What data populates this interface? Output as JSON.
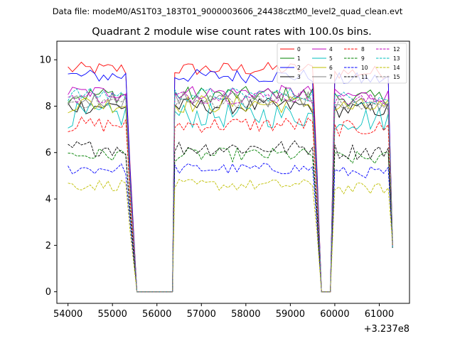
{
  "chart_data": {
    "type": "line",
    "suptitle": "Data file: modeM0/AS1T03_183T01_9000003606_24438cztM0_level2_quad_clean.evt",
    "title": "Quadrant 2 module wise count rates with 100.0s bins.",
    "xlabel": "",
    "ylabel": "",
    "x_offset_label": "+3.237e8",
    "xlim": [
      53750,
      61680
    ],
    "ylim": [
      -0.5,
      10.8
    ],
    "x_ticks": [
      54000,
      55000,
      56000,
      57000,
      58000,
      59000,
      60000,
      61000
    ],
    "x_tick_labels": [
      "54000",
      "55000",
      "56000",
      "57000",
      "58000",
      "59000",
      "60000",
      "61000"
    ],
    "y_ticks": [
      0,
      2,
      4,
      6,
      8,
      10
    ],
    "y_tick_labels": [
      "0",
      "2",
      "4",
      "6",
      "8",
      "10"
    ],
    "grid": false,
    "legend_position": "top-right",
    "segments": [
      {
        "start": 54000,
        "end": 55400
      },
      {
        "start": 56400,
        "end": 59600
      },
      {
        "start": 60000,
        "end": 61300
      }
    ],
    "series": [
      {
        "name": "0",
        "color": "#ff0000",
        "dash": "solid",
        "mean": 9.6,
        "amp": 0.3
      },
      {
        "name": "1",
        "color": "#008000",
        "dash": "solid",
        "mean": 8.5,
        "amp": 0.35
      },
      {
        "name": "2",
        "color": "#0000ff",
        "dash": "solid",
        "mean": 9.3,
        "amp": 0.3
      },
      {
        "name": "3",
        "color": "#000000",
        "dash": "solid",
        "mean": 8.0,
        "amp": 0.35
      },
      {
        "name": "4",
        "color": "#bf00bf",
        "dash": "solid",
        "mean": 8.6,
        "amp": 0.3
      },
      {
        "name": "5",
        "color": "#00bfbf",
        "dash": "solid",
        "mean": 7.6,
        "amp": 0.55
      },
      {
        "name": "6",
        "color": "#bfbf00",
        "dash": "solid",
        "mean": 8.1,
        "amp": 0.4
      },
      {
        "name": "7",
        "color": "#808080",
        "dash": "solid",
        "mean": 8.3,
        "amp": 0.35
      },
      {
        "name": "8",
        "color": "#ff0000",
        "dash": "dashed",
        "mean": 7.2,
        "amp": 0.35
      },
      {
        "name": "9",
        "color": "#008000",
        "dash": "dashed",
        "mean": 5.9,
        "amp": 0.3
      },
      {
        "name": "10",
        "color": "#0000ff",
        "dash": "dashed",
        "mean": 5.3,
        "amp": 0.25
      },
      {
        "name": "11",
        "color": "#000000",
        "dash": "dashed",
        "mean": 6.2,
        "amp": 0.35
      },
      {
        "name": "12",
        "color": "#bf00bf",
        "dash": "dashed",
        "mean": 8.4,
        "amp": 0.3
      },
      {
        "name": "13",
        "color": "#00bfbf",
        "dash": "dashed",
        "mean": 8.5,
        "amp": 0.3
      },
      {
        "name": "14",
        "color": "#bfbf00",
        "dash": "dashed",
        "mean": 4.6,
        "amp": 0.25
      },
      {
        "name": "15",
        "color": "#808080",
        "dash": "dashed",
        "mean": 8.2,
        "amp": 0.3
      }
    ]
  }
}
